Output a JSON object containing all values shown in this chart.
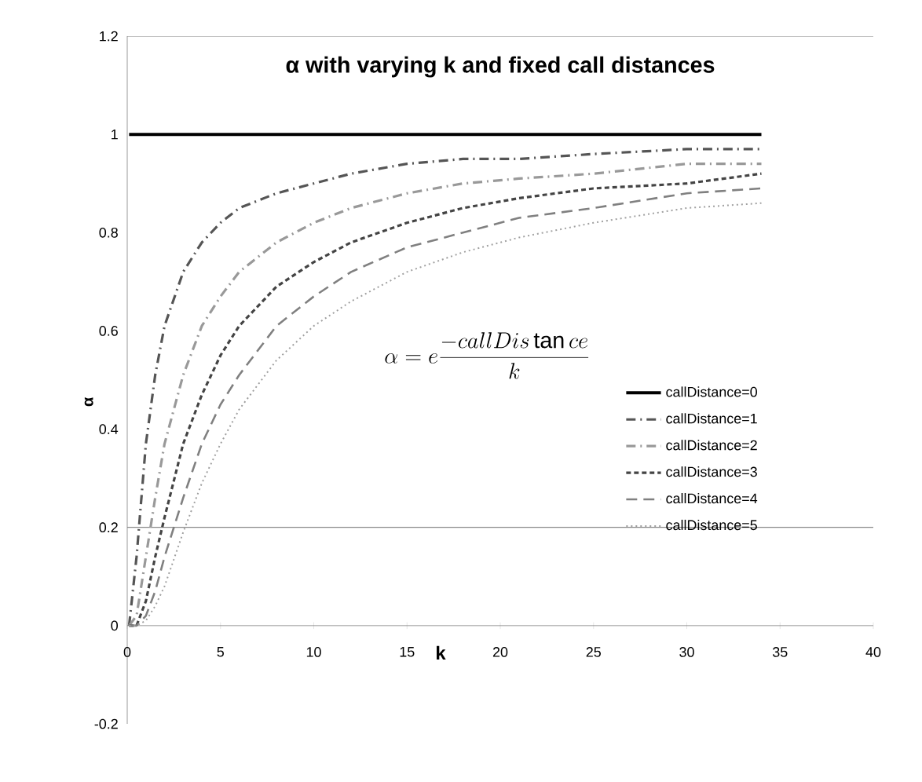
{
  "chart_data": {
    "type": "line",
    "title": "α with varying k and fixed call distances",
    "xlabel": "k",
    "ylabel": "α",
    "x": [
      0.1,
      0.5,
      1,
      1.5,
      2,
      3,
      4,
      5,
      6,
      8,
      10,
      12,
      15,
      18,
      21,
      25,
      30,
      34
    ],
    "series": [
      {
        "name": "callDistance=0",
        "color": "#000000",
        "line_style": "solid",
        "values": [
          1,
          1,
          1,
          1,
          1,
          1,
          1,
          1,
          1,
          1,
          1,
          1,
          1,
          1,
          1,
          1,
          1,
          1
        ]
      },
      {
        "name": "callDistance=1",
        "color": "#555555",
        "line_style": "dashdot",
        "values": [
          0,
          0.14,
          0.37,
          0.51,
          0.61,
          0.72,
          0.78,
          0.82,
          0.85,
          0.88,
          0.9,
          0.92,
          0.94,
          0.95,
          0.95,
          0.96,
          0.97,
          0.97
        ]
      },
      {
        "name": "callDistance=2",
        "color": "#999999",
        "line_style": "dashdot",
        "values": [
          0,
          0.02,
          0.14,
          0.26,
          0.37,
          0.51,
          0.61,
          0.67,
          0.72,
          0.78,
          0.82,
          0.85,
          0.88,
          0.9,
          0.91,
          0.92,
          0.94,
          0.94
        ]
      },
      {
        "name": "callDistance=3",
        "color": "#444444",
        "line_style": "dashed",
        "values": [
          0,
          0,
          0.05,
          0.14,
          0.22,
          0.37,
          0.47,
          0.55,
          0.61,
          0.69,
          0.74,
          0.78,
          0.82,
          0.85,
          0.87,
          0.89,
          0.9,
          0.92
        ]
      },
      {
        "name": "callDistance=4",
        "color": "#808080",
        "line_style": "longdashed",
        "values": [
          0,
          0,
          0.02,
          0.07,
          0.14,
          0.26,
          0.37,
          0.45,
          0.51,
          0.61,
          0.67,
          0.72,
          0.77,
          0.8,
          0.83,
          0.85,
          0.88,
          0.89
        ]
      },
      {
        "name": "callDistance=5",
        "color": "#a0a0a0",
        "line_style": "dotted",
        "values": [
          0,
          0,
          0.01,
          0.04,
          0.08,
          0.19,
          0.29,
          0.37,
          0.44,
          0.54,
          0.61,
          0.66,
          0.72,
          0.76,
          0.79,
          0.82,
          0.85,
          0.86
        ]
      }
    ],
    "xlim": [
      0,
      40
    ],
    "xticks": [
      0,
      5,
      10,
      15,
      20,
      25,
      30,
      35,
      40
    ],
    "ylim": [
      -0.2,
      1.2
    ],
    "yticks": [
      -0.2,
      0,
      0.2,
      0.4,
      0.6,
      0.8,
      1,
      1.2
    ],
    "ref_lines": [
      {
        "axis": "y",
        "value": 0.2,
        "color": "#888888"
      },
      {
        "axis": "y",
        "value": 1.2,
        "color": "#888888"
      }
    ],
    "annotations": [
      "\\alpha = e\\frac{-callDis\\tan ce}{k}"
    ],
    "legend": "right",
    "grid": false,
    "marker": "none"
  }
}
